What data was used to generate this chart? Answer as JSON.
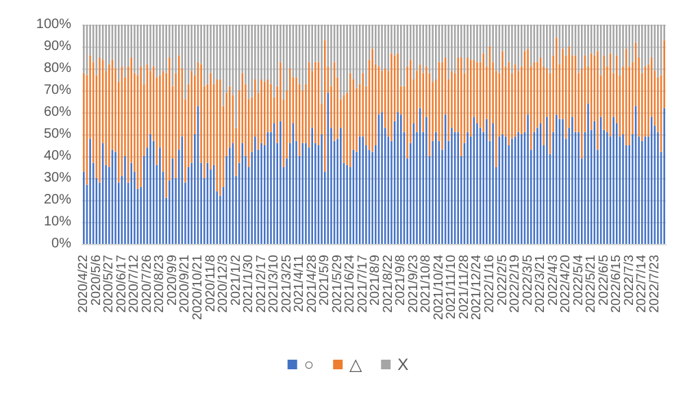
{
  "chart_data": {
    "type": "bar",
    "stacked": true,
    "categories": [
      "2020/4/22",
      null,
      null,
      null,
      "2020/5/6",
      null,
      null,
      null,
      "2020/5/27",
      null,
      null,
      null,
      "2020/6/17",
      null,
      null,
      null,
      "2020/7/12",
      null,
      null,
      null,
      "2020/7/26",
      null,
      null,
      null,
      "2020/8/23",
      null,
      null,
      null,
      "2020/9/9",
      null,
      null,
      null,
      "2020/9/21",
      null,
      null,
      null,
      "2020/10/21",
      null,
      null,
      null,
      "2020/11/8",
      null,
      null,
      null,
      "2020/12/3",
      null,
      null,
      null,
      "2021/1/2",
      null,
      null,
      null,
      "2021/1/30",
      null,
      null,
      null,
      "2021/2/17",
      null,
      null,
      null,
      "2021/3/10",
      null,
      null,
      null,
      "2021/3/25",
      null,
      null,
      null,
      "2021/4/11",
      null,
      null,
      null,
      "2021/4/28",
      null,
      null,
      null,
      "2021/5/9",
      null,
      null,
      null,
      "2021/5/29",
      null,
      null,
      null,
      "2021/6/24",
      null,
      null,
      null,
      "2021/7/17",
      null,
      null,
      null,
      "2021/8/9",
      null,
      null,
      null,
      "2021/8/22",
      null,
      null,
      null,
      "2021/9/8",
      null,
      null,
      null,
      "2021/9/23",
      null,
      null,
      null,
      "2021/10/8",
      null,
      null,
      null,
      "2021/10/24",
      null,
      null,
      null,
      "2021/11/10",
      null,
      null,
      null,
      "2021/11/28",
      null,
      null,
      null,
      "2021/12/24",
      null,
      null,
      null,
      "2022/1/16",
      null,
      null,
      null,
      "2022/2/5",
      null,
      null,
      null,
      "2022/2/19",
      null,
      null,
      null,
      "2022/3/5",
      null,
      null,
      null,
      "2022/3/21",
      null,
      null,
      null,
      "2022/4/3",
      null,
      null,
      null,
      "2022/4/20",
      null,
      null,
      null,
      "2022/5/4",
      null,
      null,
      null,
      "2022/5/21",
      null,
      null,
      null,
      "2022/6/5",
      null,
      null,
      null,
      "2022/6/15",
      null,
      null,
      null,
      "2022/7/3",
      null,
      null,
      null,
      "2022/7/14",
      null,
      null,
      null,
      "2022/7/23",
      null,
      null,
      null
    ],
    "series": [
      {
        "name": "○",
        "color": "#4472c4",
        "values": [
          33,
          27,
          48,
          37,
          30,
          28,
          46,
          36,
          35,
          43,
          42,
          28,
          31,
          40,
          28,
          37,
          33,
          25,
          26,
          40,
          44,
          50,
          47,
          36,
          44,
          33,
          21,
          29,
          39,
          30,
          43,
          49,
          28,
          35,
          37,
          50,
          63,
          37,
          30,
          37,
          34,
          36,
          24,
          22,
          26,
          40,
          44,
          46,
          31,
          37,
          46,
          40,
          35,
          42,
          49,
          43,
          46,
          45,
          51,
          51,
          55,
          46,
          56,
          35,
          39,
          46,
          55,
          47,
          40,
          46,
          46,
          44,
          53,
          46,
          45,
          50,
          33,
          69,
          53,
          47,
          48,
          53,
          37,
          36,
          35,
          43,
          42,
          49,
          49,
          45,
          43,
          42,
          45,
          59,
          60,
          53,
          49,
          47,
          56,
          60,
          59,
          51,
          39,
          46,
          55,
          51,
          62,
          51,
          58,
          40,
          47,
          51,
          47,
          43,
          59,
          47,
          53,
          51,
          51,
          40,
          46,
          51,
          49,
          58,
          55,
          53,
          51,
          57,
          47,
          55,
          35,
          49,
          50,
          49,
          45,
          48,
          49,
          51,
          50,
          51,
          59,
          43,
          51,
          53,
          55,
          45,
          58,
          41,
          51,
          59,
          57,
          57,
          48,
          53,
          58,
          51,
          51,
          39,
          51,
          64,
          52,
          56,
          43,
          58,
          52,
          51,
          49,
          58,
          55,
          49,
          50,
          45,
          45,
          50,
          63,
          49,
          47,
          49,
          49,
          58,
          54,
          51,
          42,
          62
        ]
      },
      {
        "name": "△",
        "color": "#ed7d31",
        "values": [
          45,
          50,
          38,
          46,
          47,
          57,
          38,
          43,
          47,
          41,
          38,
          46,
          50,
          36,
          53,
          48,
          45,
          52,
          55,
          33,
          38,
          29,
          34,
          40,
          33,
          46,
          57,
          56,
          33,
          48,
          43,
          31,
          38,
          38,
          42,
          27,
          20,
          45,
          42,
          36,
          44,
          37,
          51,
          53,
          37,
          29,
          28,
          22,
          22,
          33,
          32,
          33,
          31,
          25,
          26,
          26,
          29,
          29,
          24,
          22,
          12,
          26,
          27,
          31,
          31,
          34,
          21,
          29,
          33,
          24,
          27,
          39,
          26,
          37,
          38,
          14,
          60,
          12,
          19,
          36,
          28,
          13,
          31,
          33,
          43,
          32,
          29,
          24,
          29,
          27,
          41,
          47,
          37,
          22,
          19,
          27,
          30,
          40,
          30,
          27,
          13,
          21,
          42,
          38,
          20,
          28,
          20,
          27,
          23,
          38,
          27,
          24,
          36,
          40,
          26,
          28,
          26,
          27,
          34,
          45,
          32,
          34,
          35,
          26,
          28,
          30,
          36,
          24,
          43,
          28,
          44,
          29,
          38,
          32,
          38,
          30,
          33,
          28,
          31,
          37,
          30,
          38,
          32,
          30,
          30,
          36,
          22,
          37,
          35,
          35,
          25,
          32,
          38,
          37,
          28,
          35,
          27,
          41,
          35,
          17,
          35,
          30,
          45,
          19,
          34,
          30,
          38,
          20,
          31,
          28,
          31,
          44,
          36,
          33,
          29,
          36,
          31,
          32,
          33,
          27,
          25,
          25,
          35,
          31
        ]
      },
      {
        "name": "X",
        "color": "#a5a5a5",
        "values": [
          22,
          23,
          14,
          17,
          23,
          15,
          16,
          21,
          18,
          16,
          20,
          26,
          19,
          24,
          19,
          15,
          22,
          23,
          19,
          27,
          18,
          21,
          19,
          24,
          23,
          21,
          22,
          15,
          28,
          22,
          14,
          20,
          34,
          27,
          21,
          23,
          17,
          18,
          28,
          27,
          22,
          27,
          25,
          25,
          37,
          31,
          28,
          32,
          47,
          30,
          22,
          27,
          34,
          33,
          25,
          31,
          25,
          26,
          25,
          27,
          33,
          28,
          17,
          34,
          30,
          20,
          24,
          24,
          27,
          30,
          27,
          17,
          21,
          17,
          17,
          36,
          7,
          19,
          28,
          17,
          24,
          34,
          32,
          31,
          22,
          25,
          29,
          27,
          22,
          28,
          16,
          11,
          18,
          19,
          21,
          20,
          21,
          13,
          14,
          13,
          28,
          28,
          19,
          16,
          25,
          21,
          18,
          22,
          19,
          22,
          26,
          25,
          17,
          17,
          15,
          25,
          21,
          22,
          15,
          15,
          22,
          15,
          16,
          16,
          17,
          17,
          13,
          19,
          10,
          17,
          21,
          22,
          12,
          19,
          17,
          22,
          18,
          21,
          19,
          12,
          11,
          19,
          17,
          17,
          15,
          19,
          20,
          22,
          14,
          6,
          18,
          11,
          14,
          10,
          14,
          14,
          22,
          20,
          14,
          19,
          13,
          14,
          12,
          23,
          14,
          19,
          13,
          22,
          14,
          23,
          19,
          11,
          19,
          17,
          8,
          15,
          22,
          19,
          18,
          15,
          21,
          24,
          23,
          7
        ]
      }
    ],
    "ylim": [
      0,
      100
    ],
    "yticks": [
      {
        "value": 0,
        "label": "0%"
      },
      {
        "value": 10,
        "label": "10%"
      },
      {
        "value": 20,
        "label": "20%"
      },
      {
        "value": 30,
        "label": "30%"
      },
      {
        "value": 40,
        "label": "40%"
      },
      {
        "value": 50,
        "label": "50%"
      },
      {
        "value": 60,
        "label": "60%"
      },
      {
        "value": 70,
        "label": "70%"
      },
      {
        "value": 80,
        "label": "80%"
      },
      {
        "value": 90,
        "label": "90%"
      },
      {
        "value": 100,
        "label": "100%"
      }
    ],
    "grid": "y",
    "legend": "bottom"
  }
}
